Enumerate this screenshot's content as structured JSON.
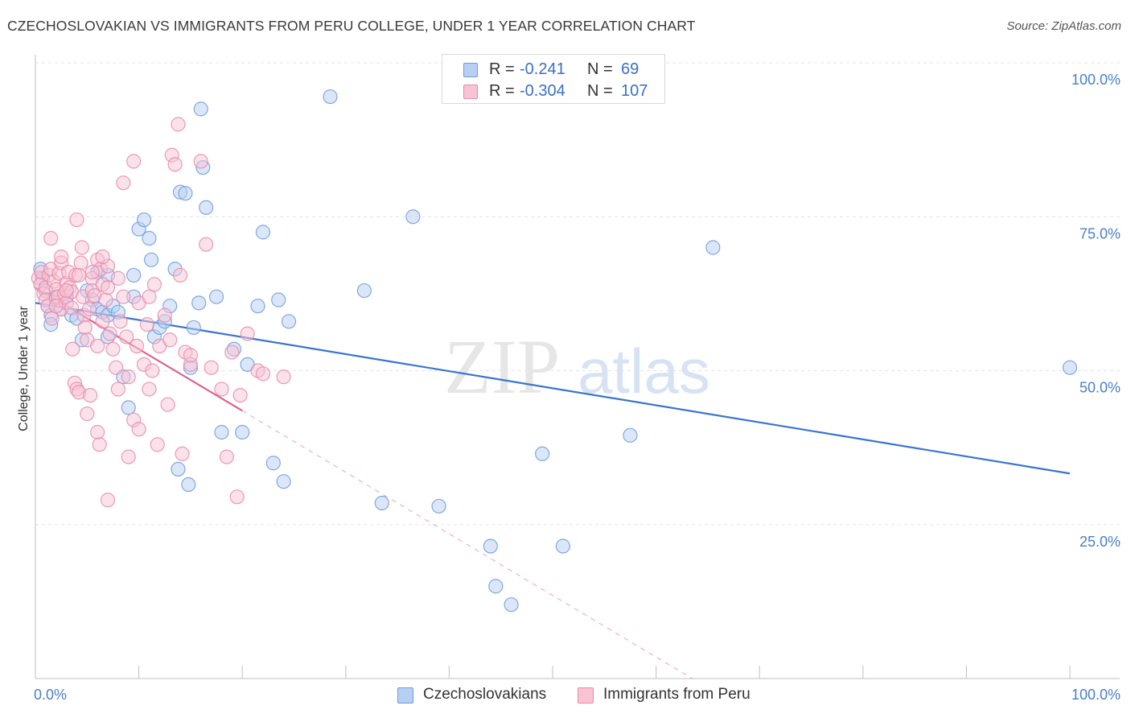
{
  "title": "CZECHOSLOVAKIAN VS IMMIGRANTS FROM PERU COLLEGE, UNDER 1 YEAR CORRELATION CHART",
  "source": "Source: ZipAtlas.com",
  "watermark": {
    "zip": "ZIP",
    "atlas": "atlas"
  },
  "legend": {
    "rows": [
      {
        "r_label": "R =",
        "r_value": "-0.241",
        "n_label": "N =",
        "n_value": "69",
        "fill": "#b7d0f2",
        "stroke": "#6b9be0"
      },
      {
        "r_label": "R =",
        "r_value": "-0.304",
        "n_label": "N =",
        "n_value": "107",
        "fill": "#f8c3d3",
        "stroke": "#e88aaa"
      }
    ]
  },
  "bottom_legend": [
    {
      "label": "Czechoslovakians",
      "fill": "#b7d0f2",
      "stroke": "#6b9be0"
    },
    {
      "label": "Immigrants from Peru",
      "fill": "#f8c3d3",
      "stroke": "#e88aaa"
    }
  ],
  "chart_data": {
    "type": "scatter",
    "title": "CZECHOSLOVAKIAN VS IMMIGRANTS FROM PERU COLLEGE, UNDER 1 YEAR CORRELATION CHART",
    "xlabel": "",
    "ylabel": "College, Under 1 year",
    "xlim": [
      0,
      100
    ],
    "ylim": [
      0,
      100
    ],
    "x_tick_labels": [
      {
        "value": 0,
        "label": "0.0%"
      },
      {
        "value": 100,
        "label": "100.0%"
      }
    ],
    "y_tick_labels": [
      {
        "value": 100,
        "label": "100.0%"
      },
      {
        "value": 75,
        "label": "75.0%"
      },
      {
        "value": 50,
        "label": "50.0%"
      },
      {
        "value": 25,
        "label": "25.0%"
      }
    ],
    "grid": true,
    "series": [
      {
        "name": "Czechoslovakians",
        "color": "#6b9be0",
        "fill": "#b7d0f2",
        "trend": {
          "x0": 0,
          "y0": 61.0,
          "x1": 100,
          "y1": 33.3,
          "color": "#3a74d0",
          "dashed_extension": false
        },
        "points": [
          [
            0.5,
            66.5
          ],
          [
            0.7,
            65
          ],
          [
            1,
            63
          ],
          [
            1.2,
            60.5
          ],
          [
            1.5,
            59
          ],
          [
            1.5,
            57.5
          ],
          [
            2,
            62
          ],
          [
            2.5,
            60
          ],
          [
            3,
            62
          ],
          [
            3.5,
            59
          ],
          [
            4,
            58.5
          ],
          [
            4.5,
            55
          ],
          [
            5,
            63
          ],
          [
            5.5,
            61.5
          ],
          [
            6,
            60
          ],
          [
            6,
            66
          ],
          [
            6.5,
            59.5
          ],
          [
            7,
            59
          ],
          [
            7,
            55.5
          ],
          [
            7.5,
            60.5
          ],
          [
            8,
            59.5
          ],
          [
            8.5,
            49
          ],
          [
            9,
            44
          ],
          [
            9.5,
            62
          ],
          [
            10,
            73
          ],
          [
            10.5,
            74.5
          ],
          [
            11,
            71.5
          ],
          [
            11.2,
            68
          ],
          [
            11.5,
            55.5
          ],
          [
            12,
            57
          ],
          [
            12.5,
            58
          ],
          [
            13,
            60.5
          ],
          [
            13.5,
            66.5
          ],
          [
            13.8,
            34
          ],
          [
            14,
            79
          ],
          [
            14.5,
            78.8
          ],
          [
            14.8,
            31.5
          ],
          [
            15,
            50.5
          ],
          [
            15.3,
            57
          ],
          [
            15.8,
            61
          ],
          [
            16,
            92.5
          ],
          [
            16.2,
            83
          ],
          [
            16.5,
            76.5
          ],
          [
            17.5,
            62
          ],
          [
            18,
            40
          ],
          [
            19.2,
            53.5
          ],
          [
            20,
            40
          ],
          [
            20.5,
            51
          ],
          [
            21.5,
            60.5
          ],
          [
            22,
            72.5
          ],
          [
            23,
            35
          ],
          [
            23.5,
            61.5
          ],
          [
            24,
            32
          ],
          [
            24.5,
            58
          ],
          [
            28.5,
            94.5
          ],
          [
            31.8,
            63
          ],
          [
            33.5,
            28.5
          ],
          [
            36.5,
            75
          ],
          [
            39,
            28
          ],
          [
            44,
            21.5
          ],
          [
            44.5,
            15
          ],
          [
            46,
            12
          ],
          [
            49,
            36.5
          ],
          [
            51,
            21.5
          ],
          [
            57.5,
            39.5
          ],
          [
            65.5,
            70
          ],
          [
            100,
            50.5
          ],
          [
            7,
            65.5
          ],
          [
            9.5,
            65.5
          ]
        ]
      },
      {
        "name": "Immigrants from Peru",
        "color": "#e88aaa",
        "fill": "#f8c3d3",
        "trend": {
          "x0": 0,
          "y0": 63.5,
          "x1": 20,
          "y1": 43.5,
          "color": "#e0608f",
          "dashed_extension": true,
          "dash_x1": 63.5,
          "dash_y1": 0
        },
        "points": [
          [
            0.3,
            65
          ],
          [
            0.5,
            64
          ],
          [
            0.6,
            66
          ],
          [
            0.8,
            62.5
          ],
          [
            1,
            63.5
          ],
          [
            1,
            61.5
          ],
          [
            1.2,
            60.5
          ],
          [
            1.3,
            65.5
          ],
          [
            1.5,
            66.5
          ],
          [
            1.6,
            58.5
          ],
          [
            1.8,
            64.5
          ],
          [
            2,
            61.8
          ],
          [
            2,
            63.2
          ],
          [
            2.2,
            62
          ],
          [
            2.3,
            65.8
          ],
          [
            2.5,
            67.5
          ],
          [
            2.5,
            60
          ],
          [
            2.8,
            62.5
          ],
          [
            3,
            64.2
          ],
          [
            3,
            61
          ],
          [
            3.2,
            66
          ],
          [
            3.3,
            63.5
          ],
          [
            3.5,
            62.8
          ],
          [
            3.6,
            53.5
          ],
          [
            3.8,
            48
          ],
          [
            3.9,
            65.5
          ],
          [
            4,
            74.5
          ],
          [
            4,
            47
          ],
          [
            4.2,
            46.5
          ],
          [
            4.4,
            67.5
          ],
          [
            4.5,
            70
          ],
          [
            4.6,
            62
          ],
          [
            4.7,
            59
          ],
          [
            4.8,
            57
          ],
          [
            5,
            55
          ],
          [
            5,
            43
          ],
          [
            5.2,
            60
          ],
          [
            5.3,
            46
          ],
          [
            5.5,
            65
          ],
          [
            5.5,
            63
          ],
          [
            5.7,
            62.2
          ],
          [
            6,
            68
          ],
          [
            6,
            54
          ],
          [
            6,
            40
          ],
          [
            6.2,
            38
          ],
          [
            6.3,
            66.5
          ],
          [
            6.5,
            64
          ],
          [
            6.5,
            58
          ],
          [
            6.8,
            61.5
          ],
          [
            7,
            63.5
          ],
          [
            7,
            67
          ],
          [
            7,
            29
          ],
          [
            7.2,
            56
          ],
          [
            7.5,
            53.5
          ],
          [
            7.8,
            50.5
          ],
          [
            8,
            65
          ],
          [
            8,
            47
          ],
          [
            8.2,
            58
          ],
          [
            8.5,
            80.5
          ],
          [
            8.5,
            62
          ],
          [
            8.8,
            55.5
          ],
          [
            9,
            49
          ],
          [
            9,
            36
          ],
          [
            9.5,
            84
          ],
          [
            9.5,
            42
          ],
          [
            9.8,
            54
          ],
          [
            10,
            61
          ],
          [
            10,
            40.5
          ],
          [
            10.5,
            51
          ],
          [
            10.8,
            57.5
          ],
          [
            11,
            62
          ],
          [
            11,
            47
          ],
          [
            11.3,
            50
          ],
          [
            11.5,
            64
          ],
          [
            11.8,
            38
          ],
          [
            12,
            54
          ],
          [
            12.5,
            59
          ],
          [
            12.8,
            44.5
          ],
          [
            13,
            55
          ],
          [
            13.2,
            85
          ],
          [
            13.5,
            83.5
          ],
          [
            13.8,
            90
          ],
          [
            14,
            65.5
          ],
          [
            14.2,
            36.5
          ],
          [
            14.5,
            53
          ],
          [
            15,
            51
          ],
          [
            15,
            52.5
          ],
          [
            16,
            84
          ],
          [
            16.5,
            70.5
          ],
          [
            17,
            50.5
          ],
          [
            18,
            47
          ],
          [
            18.5,
            36
          ],
          [
            19,
            53
          ],
          [
            19.5,
            29.5
          ],
          [
            19.8,
            46
          ],
          [
            20.5,
            56
          ],
          [
            21.5,
            50
          ],
          [
            22,
            49.5
          ],
          [
            24,
            49
          ],
          [
            1.5,
            71.5
          ],
          [
            2.5,
            68.5
          ],
          [
            3,
            63
          ],
          [
            4.2,
            65.5
          ],
          [
            5.5,
            66
          ],
          [
            2,
            60.5
          ],
          [
            3.5,
            60.2
          ],
          [
            6.5,
            68.5
          ]
        ]
      }
    ]
  }
}
